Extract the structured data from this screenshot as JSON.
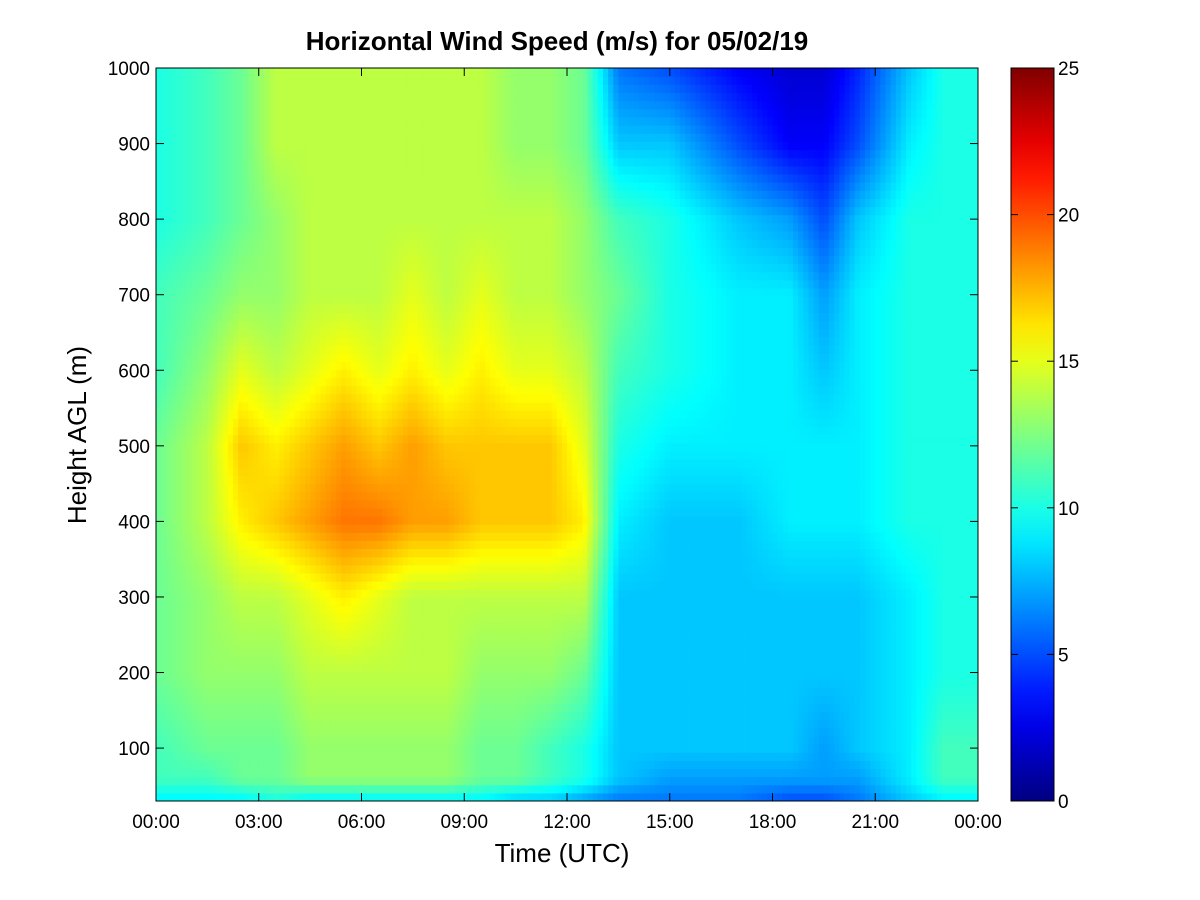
{
  "chart_data": {
    "type": "heatmap",
    "title": "Horizontal Wind Speed (m/s) for 05/02/19",
    "xlabel": "Time (UTC)",
    "ylabel": "Height AGL (m)",
    "x_unit": "hour (UTC)",
    "xlim": [
      0,
      24
    ],
    "ylim": [
      30,
      1000
    ],
    "x_ticks": [
      0,
      3,
      6,
      9,
      12,
      15,
      18,
      21,
      24
    ],
    "x_tick_labels": [
      "00:00",
      "03:00",
      "06:00",
      "09:00",
      "12:00",
      "15:00",
      "18:00",
      "21:00",
      "00:00"
    ],
    "y_ticks": [
      100,
      200,
      300,
      400,
      500,
      600,
      700,
      800,
      900,
      1000
    ],
    "y_tick_labels": [
      "100",
      "200",
      "300",
      "400",
      "500",
      "600",
      "700",
      "800",
      "900",
      "1000"
    ],
    "colorbar": {
      "colormap": "jet",
      "clim": [
        0,
        25
      ],
      "ticks": [
        0,
        5,
        10,
        15,
        20,
        25
      ],
      "tick_labels": [
        "0",
        "5",
        "10",
        "15",
        "20",
        "25"
      ]
    },
    "grid": false,
    "x": [
      0,
      1.5,
      2.5,
      3.5,
      4.5,
      5.5,
      6.5,
      7.5,
      8.5,
      9.5,
      10.5,
      11.5,
      12.5,
      13.5,
      15,
      17,
      18.5,
      19.5,
      20.5,
      22,
      23,
      24
    ],
    "y": [
      30,
      60,
      100,
      200,
      300,
      400,
      500,
      600,
      700,
      800,
      900,
      1000
    ],
    "z": [
      [
        9,
        9,
        9,
        10,
        9,
        9,
        9,
        9,
        9,
        9,
        8,
        8,
        7,
        6,
        6,
        6,
        5,
        5,
        6,
        8,
        9,
        9
      ],
      [
        11,
        11,
        12,
        12,
        13,
        13,
        13,
        13,
        13,
        12,
        12,
        11,
        10,
        8,
        7,
        7,
        7,
        7,
        7,
        9,
        11,
        11
      ],
      [
        11,
        12,
        12,
        12,
        13,
        13,
        13,
        13,
        13,
        12,
        12,
        11,
        10,
        8,
        8,
        8,
        8,
        7,
        8,
        9,
        11,
        11
      ],
      [
        12,
        13,
        13,
        13,
        14,
        14,
        14,
        14,
        14,
        13,
        13,
        13,
        12,
        8,
        8,
        8,
        8,
        8,
        8,
        9,
        10,
        10
      ],
      [
        12,
        13,
        14,
        14,
        15,
        16,
        15,
        14,
        14,
        14,
        14,
        14,
        14,
        8,
        8,
        8,
        8,
        8,
        8,
        9,
        10,
        10
      ],
      [
        12,
        14,
        16,
        17,
        18,
        19,
        19,
        18,
        18,
        17,
        17,
        17,
        16,
        9,
        8,
        8,
        9,
        9,
        9,
        10,
        10,
        10
      ],
      [
        12,
        14,
        17,
        16,
        17,
        18,
        17,
        18,
        17,
        17,
        17,
        17,
        15,
        10,
        9,
        9,
        9,
        9,
        9,
        10,
        10,
        10
      ],
      [
        11,
        13,
        15,
        14,
        15,
        16,
        15,
        16,
        15,
        16,
        15,
        15,
        14,
        11,
        10,
        9,
        9,
        8,
        9,
        10,
        10,
        10
      ],
      [
        11,
        12,
        13,
        13,
        14,
        14,
        14,
        15,
        14,
        15,
        14,
        14,
        13,
        12,
        10,
        9,
        9,
        7,
        9,
        10,
        10,
        10
      ],
      [
        10,
        11,
        12,
        13,
        14,
        14,
        14,
        14,
        14,
        14,
        14,
        14,
        13,
        11,
        10,
        8,
        7,
        5,
        8,
        10,
        10,
        10
      ],
      [
        10,
        11,
        12,
        14,
        14,
        14,
        14,
        14,
        14,
        14,
        13,
        13,
        12,
        8,
        8,
        5,
        3,
        3,
        5,
        9,
        10,
        10
      ],
      [
        10,
        11,
        12,
        14,
        14,
        14,
        14,
        14,
        14,
        14,
        13,
        13,
        12,
        6,
        5,
        3,
        2,
        2,
        4,
        8,
        10,
        10
      ]
    ]
  }
}
